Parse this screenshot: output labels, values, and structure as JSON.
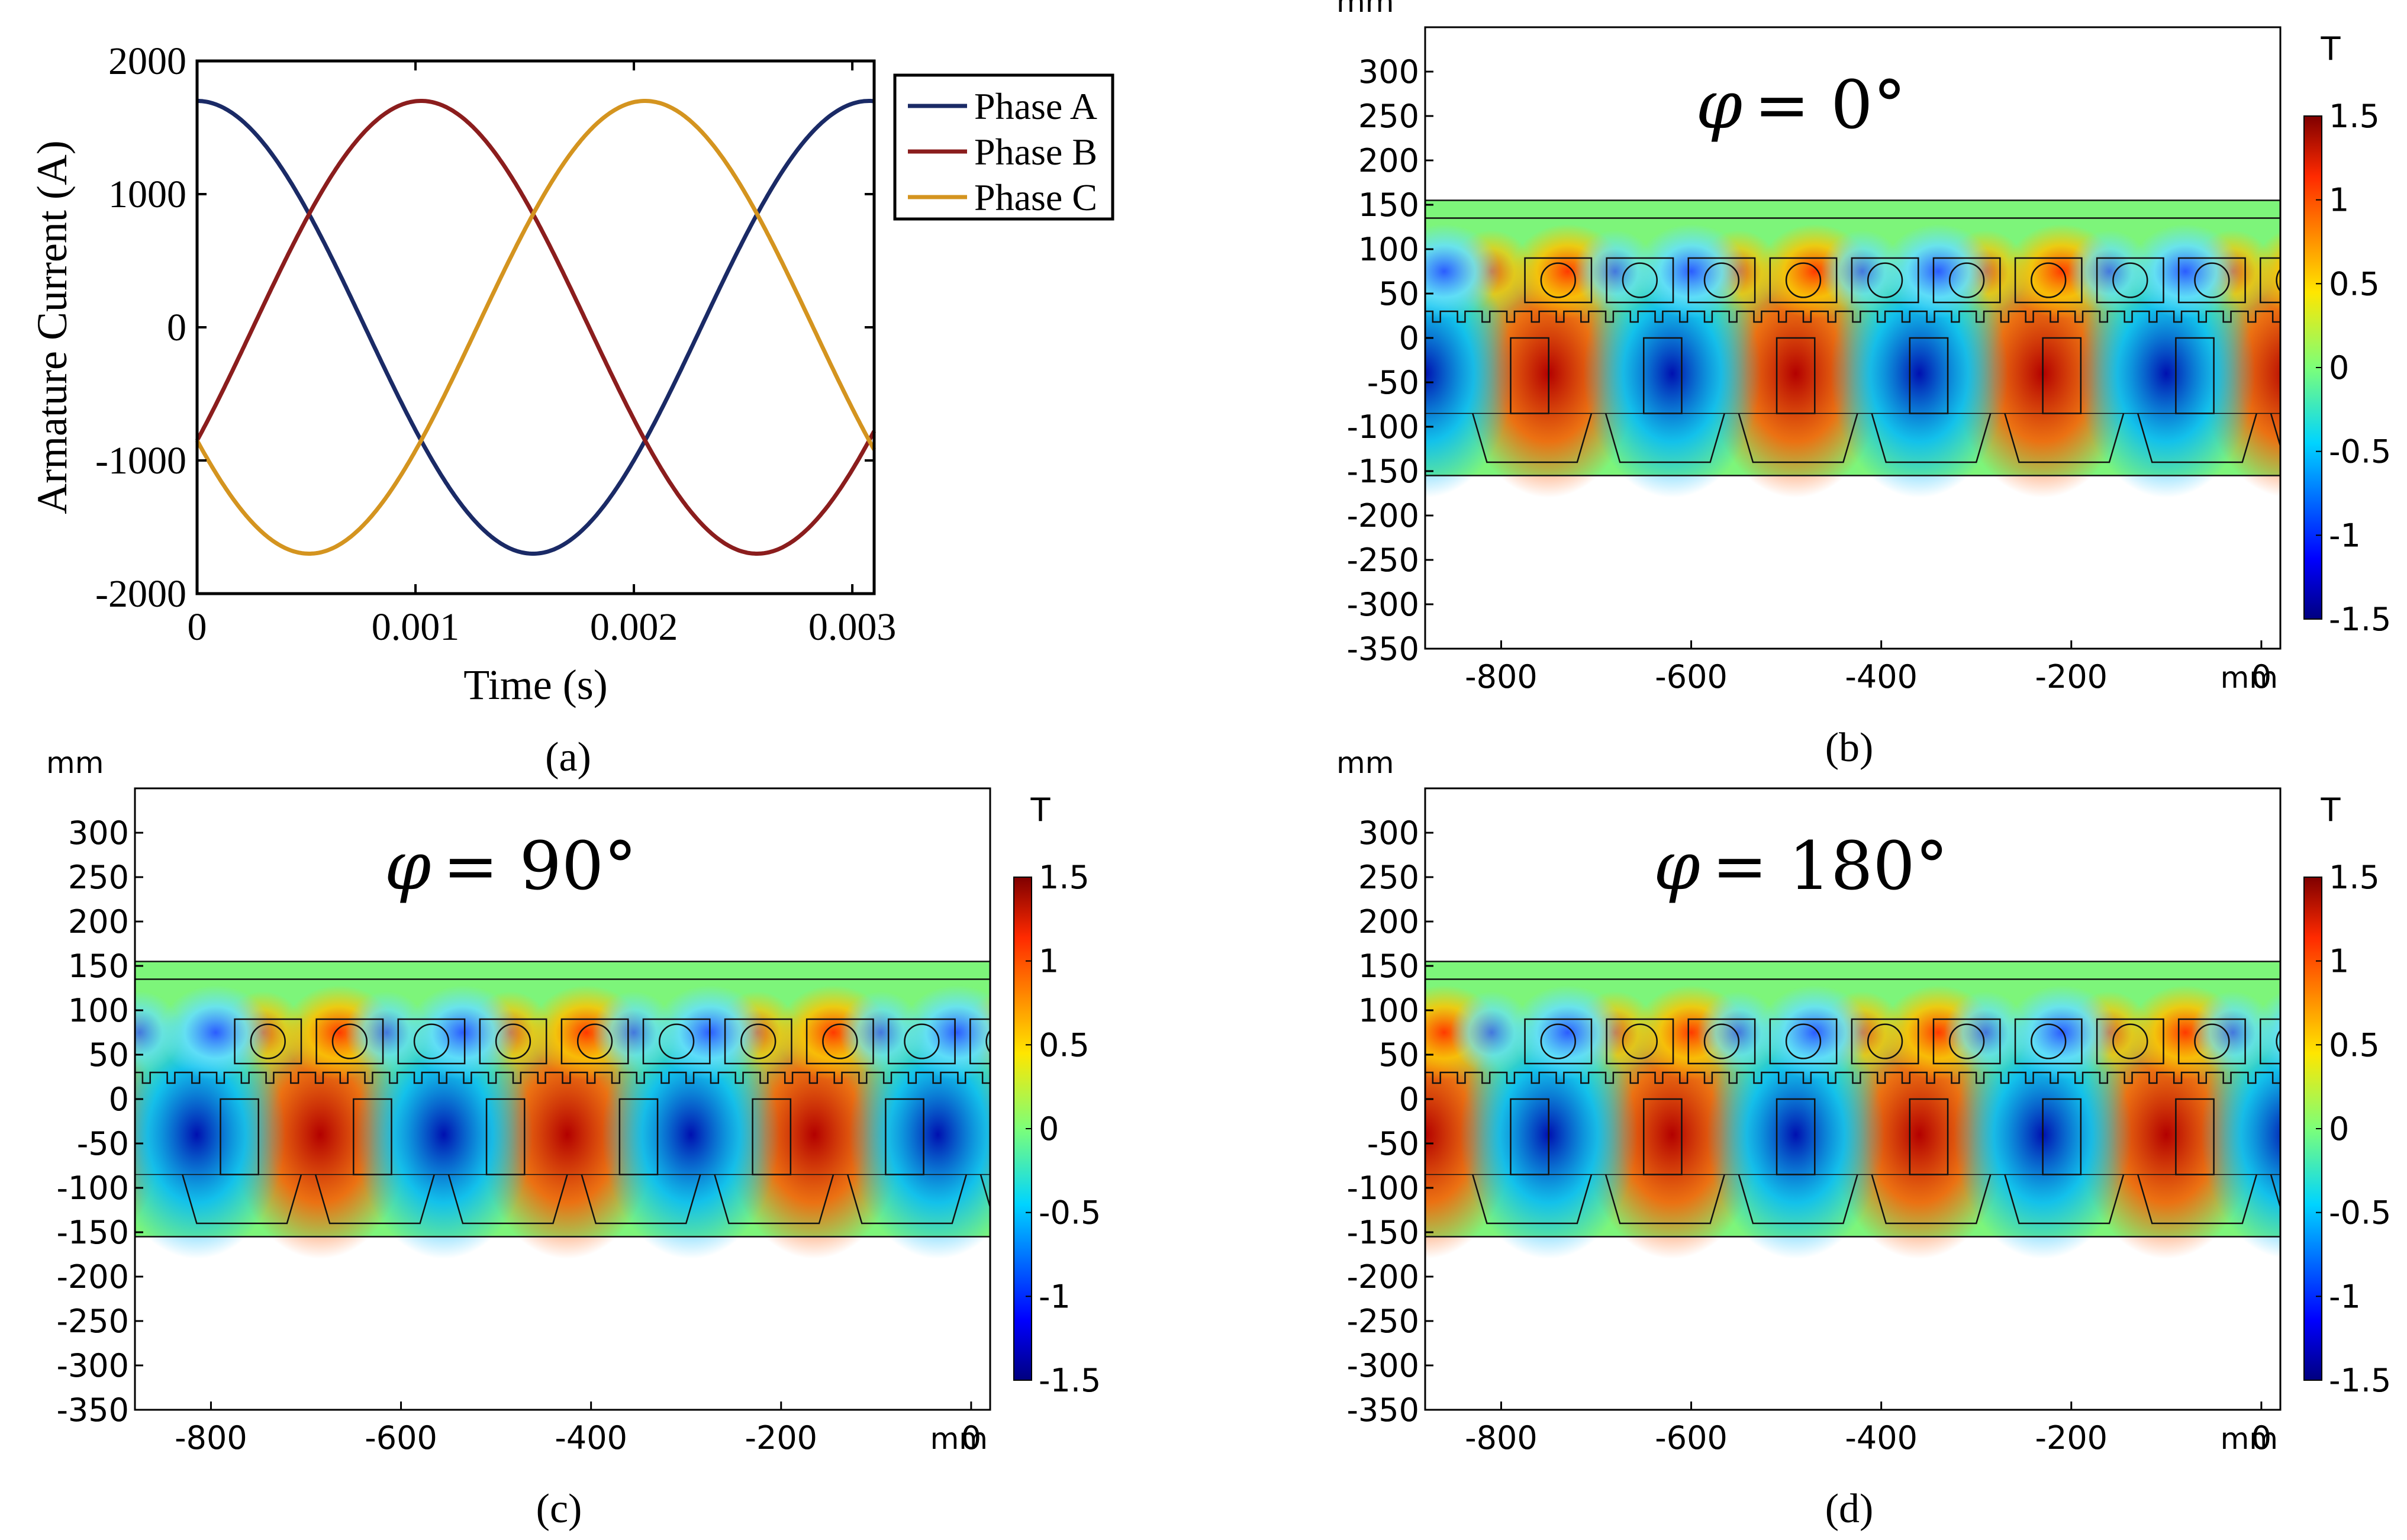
{
  "chart_data": [
    {
      "panel": "a",
      "type": "line",
      "caption": "(a)",
      "xlabel": "Time (s)",
      "ylabel": "Armature Current (A)",
      "xlim": [
        0,
        0.0031
      ],
      "ylim": [
        -2000,
        2000
      ],
      "x_ticks": [
        0,
        0.001,
        0.002,
        0.003
      ],
      "x_tick_labels": [
        "0",
        "0.001",
        "0.002",
        "0.003"
      ],
      "y_ticks": [
        2000,
        1000,
        0,
        -1000,
        -2000
      ],
      "y_tick_labels": [
        "2000",
        "1000",
        "0",
        "-1000",
        "-2000"
      ],
      "legend": {
        "placement": "outside-right",
        "entries": [
          "Phase A",
          "Phase B",
          "Phase C"
        ]
      },
      "period_s": 0.003077,
      "series": [
        {
          "name": "Phase A",
          "color": "#1a2a66",
          "amplitude": 1700,
          "phase_deg": 0,
          "x": [
            0,
            0.00051,
            0.00103,
            0.00154,
            0.00205,
            0.00256,
            0.0031
          ],
          "y": [
            1700,
            850,
            -850,
            -1700,
            -850,
            850,
            1700
          ]
        },
        {
          "name": "Phase B",
          "color": "#8b1d1d",
          "amplitude": 1700,
          "phase_deg": -120,
          "x": [
            0,
            0.00051,
            0.00103,
            0.00154,
            0.00205,
            0.00256,
            0.0031
          ],
          "y": [
            -850,
            850,
            1700,
            850,
            -850,
            -1700,
            -850
          ]
        },
        {
          "name": "Phase C",
          "color": "#d4941f",
          "amplitude": 1700,
          "phase_deg": 120,
          "x": [
            0,
            0.00051,
            0.00103,
            0.00154,
            0.00205,
            0.00256,
            0.0031
          ],
          "y": [
            -850,
            -1700,
            -850,
            850,
            1700,
            850,
            -850
          ]
        }
      ]
    },
    {
      "panel": "b",
      "type": "heatmap",
      "caption": "(b)",
      "annotation_symbol": "φ",
      "annotation_value": "= 0°",
      "phase_deg": 0,
      "axis_unit": "mm",
      "xlim": [
        -880,
        20
      ],
      "ylim": [
        -350,
        350
      ],
      "x_ticks": [
        -800,
        -600,
        -400,
        -200,
        0
      ],
      "x_tick_labels": [
        "-800",
        "-600",
        "-400",
        "-200",
        "0"
      ],
      "y_ticks": [
        300,
        250,
        200,
        150,
        100,
        50,
        0,
        -50,
        -100,
        -150,
        -200,
        -250,
        -300,
        -350
      ],
      "y_tick_labels": [
        "300",
        "250",
        "200",
        "150",
        "100",
        "50",
        "0",
        "-50",
        "-100",
        "-150",
        "-200",
        "-250",
        "-300",
        "-350"
      ],
      "colorbar": {
        "unit": "T",
        "range": [
          -1.5,
          1.5
        ],
        "ticks": [
          1.5,
          1,
          0.5,
          0,
          -0.5,
          -1,
          -1.5
        ],
        "tick_labels": [
          "1.5",
          "1",
          "0.5",
          "0",
          "-0.5",
          "-1",
          "-1.5"
        ]
      }
    },
    {
      "panel": "c",
      "type": "heatmap",
      "caption": "(c)",
      "annotation_symbol": "φ",
      "annotation_value": "= 90°",
      "phase_deg": 90,
      "axis_unit": "mm",
      "xlim": [
        -880,
        20
      ],
      "ylim": [
        -350,
        350
      ],
      "x_ticks": [
        -800,
        -600,
        -400,
        -200,
        0
      ],
      "x_tick_labels": [
        "-800",
        "-600",
        "-400",
        "-200",
        "0"
      ],
      "y_ticks": [
        300,
        250,
        200,
        150,
        100,
        50,
        0,
        -50,
        -100,
        -150,
        -200,
        -250,
        -300,
        -350
      ],
      "y_tick_labels": [
        "300",
        "250",
        "200",
        "150",
        "100",
        "50",
        "0",
        "-50",
        "-100",
        "-150",
        "-200",
        "-250",
        "-300",
        "-350"
      ],
      "colorbar": {
        "unit": "T",
        "range": [
          -1.5,
          1.5
        ],
        "ticks": [
          1.5,
          1,
          0.5,
          0,
          -0.5,
          -1,
          -1.5
        ],
        "tick_labels": [
          "1.5",
          "1",
          "0.5",
          "0",
          "-0.5",
          "-1",
          "-1.5"
        ]
      }
    },
    {
      "panel": "d",
      "type": "heatmap",
      "caption": "(d)",
      "annotation_symbol": "φ",
      "annotation_value": "= 180°",
      "phase_deg": 180,
      "axis_unit": "mm",
      "xlim": [
        -880,
        20
      ],
      "ylim": [
        -350,
        350
      ],
      "x_ticks": [
        -800,
        -600,
        -400,
        -200,
        0
      ],
      "x_tick_labels": [
        "-800",
        "-600",
        "-400",
        "-200",
        "0"
      ],
      "y_ticks": [
        300,
        250,
        200,
        150,
        100,
        50,
        0,
        -50,
        -100,
        -150,
        -200,
        -250,
        -300,
        -350
      ],
      "y_tick_labels": [
        "300",
        "250",
        "200",
        "150",
        "100",
        "50",
        "0",
        "-50",
        "-100",
        "-150",
        "-200",
        "-250",
        "-300",
        "-350"
      ],
      "colorbar": {
        "unit": "T",
        "range": [
          -1.5,
          1.5
        ],
        "ticks": [
          1.5,
          1,
          0.5,
          0,
          -0.5,
          -1,
          -1.5
        ],
        "tick_labels": [
          "1.5",
          "1",
          "0.5",
          "0",
          "-0.5",
          "-1",
          "-1.5"
        ]
      }
    }
  ]
}
